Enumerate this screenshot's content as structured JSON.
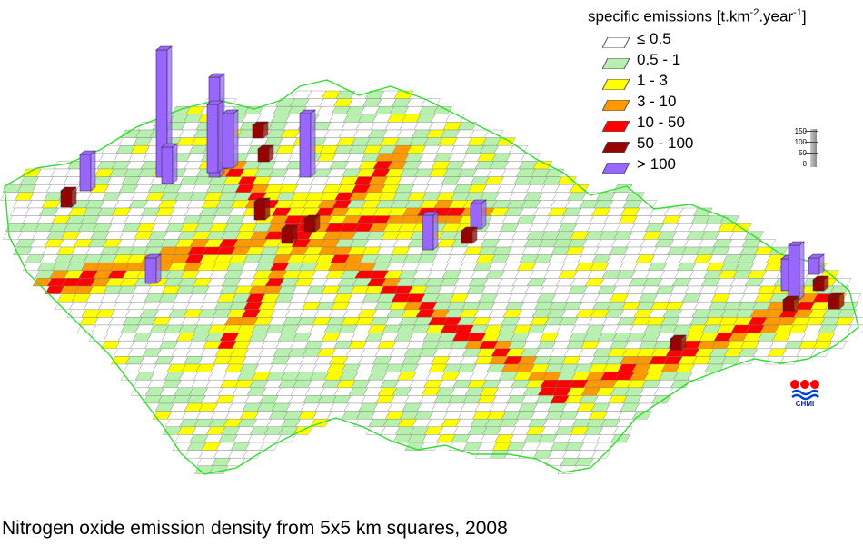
{
  "legend": {
    "title_main": "specific emissions [t.km",
    "title_exp1": "-2",
    "title_mid": ".year",
    "title_exp2": "-1",
    "title_end": "]",
    "items": [
      {
        "label": "≤ 0.5",
        "color": "#ffffff"
      },
      {
        "label": "0.5 - 1",
        "color": "#b8f0b0"
      },
      {
        "label": "1 - 3",
        "color": "#ffff00"
      },
      {
        "label": "3 - 10",
        "color": "#ff9900"
      },
      {
        "label": "10 - 50",
        "color": "#ff0000"
      },
      {
        "label": "50 - 100",
        "color": "#990000"
      },
      {
        "label": "> 100",
        "color": "#9966ff"
      }
    ]
  },
  "scale": {
    "ticks": [
      "150",
      "100",
      "50",
      "0"
    ]
  },
  "logo": {
    "text": "CHMI"
  },
  "caption": "Nitrogen oxide emission density from 5x5 km squares, 2008",
  "colors": {
    "border": "#33dd33",
    "grid": "#777777"
  }
}
